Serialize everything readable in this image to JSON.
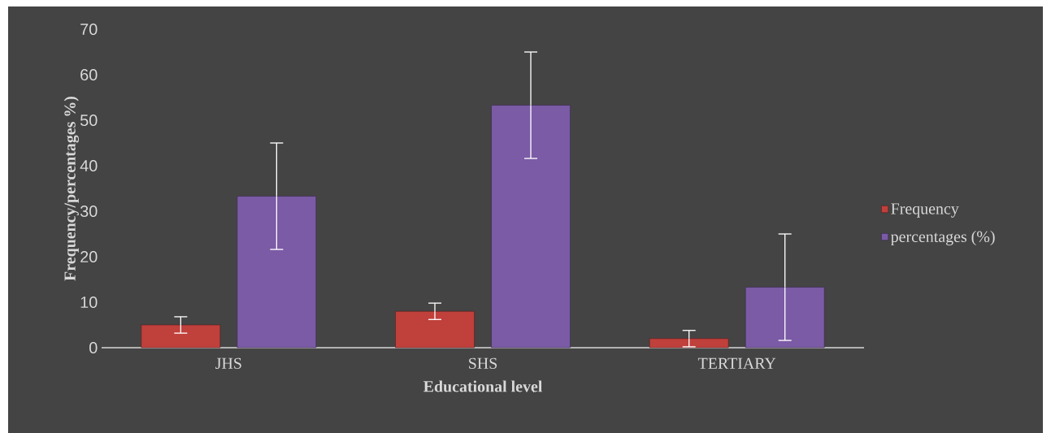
{
  "chart_data": {
    "type": "bar",
    "categories": [
      "JHS",
      "SHS",
      "TERTIARY"
    ],
    "series": [
      {
        "name": "Frequency",
        "color": "#c0403c",
        "values": [
          5,
          8,
          2
        ],
        "errors": [
          1.8,
          1.8,
          1.8
        ]
      },
      {
        "name": "percentages (%)",
        "color": "#7b5aa6",
        "values": [
          33.3,
          53.3,
          13.3
        ],
        "errors": [
          11.7,
          11.7,
          11.7
        ]
      }
    ],
    "xlabel": "Educational level",
    "ylabel": "Frequency/percentages %)",
    "ylim": [
      0,
      70
    ],
    "yticks": [
      0,
      10,
      20,
      30,
      40,
      50,
      60,
      70
    ],
    "legend": "right"
  }
}
